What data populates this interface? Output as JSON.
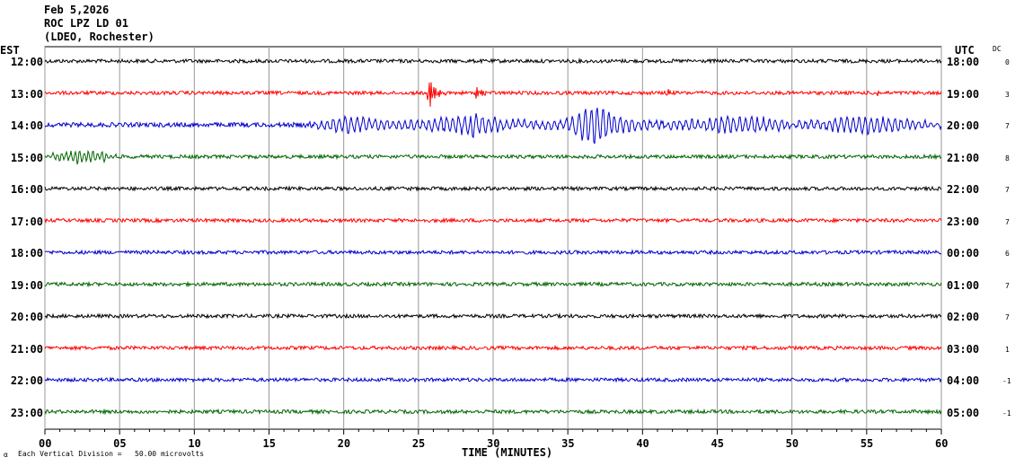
{
  "header": {
    "date": "Feb 5,2026",
    "station": "ROC LPZ LD 01",
    "network": "(LDEO, Rochester)"
  },
  "left_axis_label": "EST",
  "right_axis_label": "UTC",
  "dc_label": "DC",
  "xlabel": "TIME (MINUTES)",
  "footer_note": "Each Vertical Division =   50.00 microvolts",
  "chart_data": {
    "type": "line",
    "subtype": "helicorder",
    "xlabel": "TIME (MINUTES)",
    "xlim": [
      0,
      60
    ],
    "x_ticks": [
      "00",
      "05",
      "10",
      "15",
      "20",
      "25",
      "30",
      "35",
      "40",
      "45",
      "50",
      "55",
      "60"
    ],
    "grid": true,
    "trace_colors": [
      "#000000",
      "#ff0000",
      "#0000cc",
      "#006400"
    ],
    "traces": [
      {
        "est": "12:00",
        "utc": "18:00",
        "dc": "0",
        "color": "#000000",
        "noise": 2.0,
        "events": []
      },
      {
        "est": "13:00",
        "utc": "19:00",
        "dc": "3",
        "color": "#ff0000",
        "noise": 2.0,
        "events": [
          {
            "start_min": 25.6,
            "end_min": 27.2,
            "amplitude": 28,
            "period_min": 0.15,
            "decay": 1.5
          },
          {
            "start_min": 28.8,
            "end_min": 29.6,
            "amplitude": 10,
            "period_min": 0.15,
            "decay": 1.0
          },
          {
            "start_min": 41.6,
            "end_min": 42.0,
            "amplitude": 6,
            "period_min": 0.15,
            "decay": 1.0
          },
          {
            "start_min": 55.7,
            "end_min": 56.0,
            "amplitude": 5,
            "period_min": 0.15,
            "decay": 1.0
          }
        ]
      },
      {
        "est": "14:00",
        "utc": "20:00",
        "dc": "7",
        "color": "#0000cc",
        "noise": 2.5,
        "events": [
          {
            "start_min": 17.0,
            "end_min": 60.0,
            "amplitude": 10,
            "period_min": 0.4,
            "decay": 0,
            "profile": "surface_wave"
          },
          {
            "start_min": 28.5,
            "end_min": 29.5,
            "amplitude": 16,
            "period_min": 0.4,
            "decay": 1.0
          },
          {
            "start_min": 35.5,
            "end_min": 38.0,
            "amplitude": 22,
            "period_min": 0.4,
            "decay": 0
          }
        ]
      },
      {
        "est": "15:00",
        "utc": "21:00",
        "dc": "8",
        "color": "#006400",
        "noise": 2.0,
        "events": [
          {
            "start_min": 0.0,
            "end_min": 4.8,
            "amplitude": 7,
            "period_min": 0.3,
            "decay": 0
          }
        ]
      },
      {
        "est": "16:00",
        "utc": "22:00",
        "dc": "7",
        "color": "#000000",
        "noise": 2.0,
        "events": []
      },
      {
        "est": "17:00",
        "utc": "23:00",
        "dc": "7",
        "color": "#ff0000",
        "noise": 2.0,
        "events": []
      },
      {
        "est": "18:00",
        "utc": "00:00",
        "dc": "6",
        "color": "#0000cc",
        "noise": 2.0,
        "events": []
      },
      {
        "est": "19:00",
        "utc": "01:00",
        "dc": "7",
        "color": "#006400",
        "noise": 2.0,
        "events": []
      },
      {
        "est": "20:00",
        "utc": "02:00",
        "dc": "7",
        "color": "#000000",
        "noise": 2.0,
        "events": []
      },
      {
        "est": "21:00",
        "utc": "03:00",
        "dc": "1",
        "color": "#ff0000",
        "noise": 2.0,
        "events": []
      },
      {
        "est": "22:00",
        "utc": "04:00",
        "dc": "-1",
        "color": "#0000cc",
        "noise": 2.0,
        "events": []
      },
      {
        "est": "23:00",
        "utc": "05:00",
        "dc": "-1",
        "color": "#006400",
        "noise": 2.0,
        "events": []
      }
    ]
  }
}
